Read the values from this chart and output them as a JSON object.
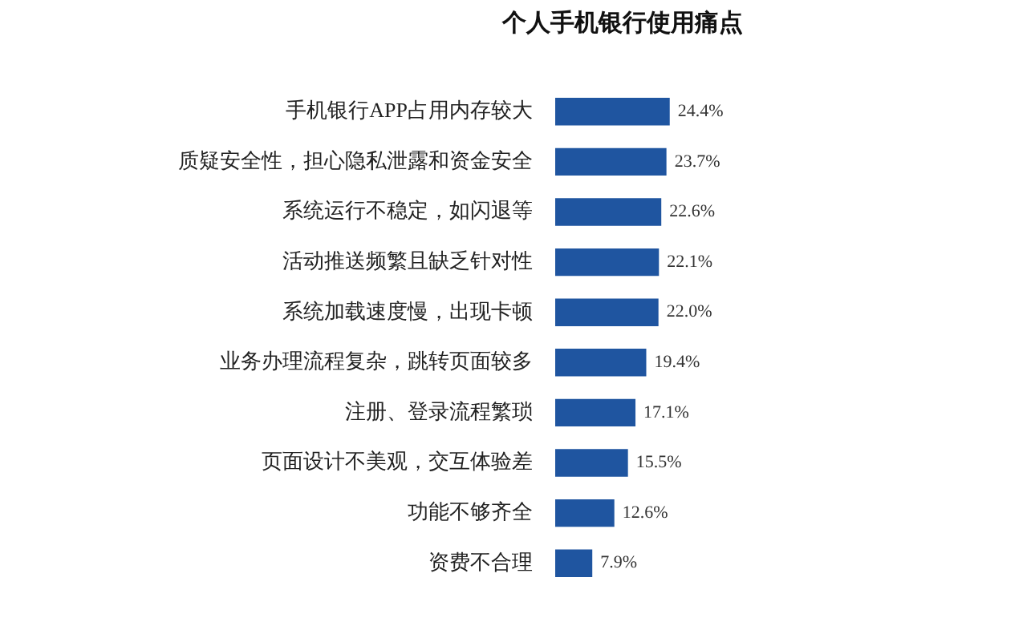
{
  "chart_data": {
    "type": "bar",
    "orientation": "horizontal",
    "title": "个人手机银行使用痛点",
    "categories": [
      "手机银行APP占用内存较大",
      "质疑安全性，担心隐私泄露和资金安全",
      "系统运行不稳定，如闪退等",
      "活动推送频繁且缺乏针对性",
      "系统加载速度慢，出现卡顿",
      "业务办理流程复杂，跳转页面较多",
      "注册、登录流程繁琐",
      "页面设计不美观，交互体验差",
      "功能不够齐全",
      "资费不合理"
    ],
    "values": [
      24.4,
      23.7,
      22.6,
      22.1,
      22.0,
      19.4,
      17.1,
      15.5,
      12.6,
      7.9
    ],
    "value_labels": [
      "24.4%",
      "23.7%",
      "22.6%",
      "22.1%",
      "22.0%",
      "19.4%",
      "17.1%",
      "15.5%",
      "12.6%",
      "7.9%"
    ],
    "color": "#1f55a0",
    "grid": false,
    "legend": false
  }
}
